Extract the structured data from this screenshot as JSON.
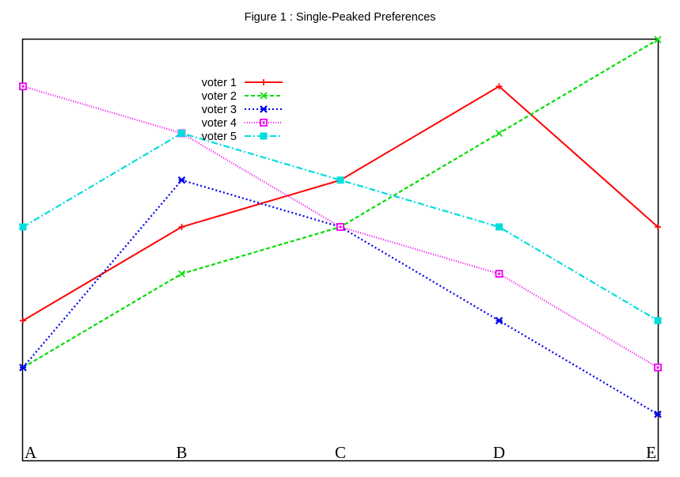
{
  "chart_data": {
    "type": "line",
    "title": "Figure 1 : Single-Peaked Preferences",
    "xlabel": "",
    "ylabel": "",
    "categories": [
      "A",
      "B",
      "C",
      "D",
      "E"
    ],
    "ylim": [
      0,
      9
    ],
    "grid": false,
    "legend_position": "top-center",
    "series": [
      {
        "name": "voter 1",
        "values": [
          3,
          5,
          6,
          8,
          5
        ],
        "color": "#ff0000",
        "line_style": "solid",
        "marker": "plus"
      },
      {
        "name": "voter 2",
        "values": [
          2,
          4,
          5,
          7,
          9
        ],
        "color": "#00dd00",
        "line_style": "dashed",
        "marker": "cross"
      },
      {
        "name": "voter 3",
        "values": [
          2,
          6,
          5,
          3,
          1
        ],
        "color": "#0000ee",
        "line_style": "dotted",
        "marker": "star"
      },
      {
        "name": "voter 4",
        "values": [
          8,
          7,
          5,
          4,
          2
        ],
        "color": "#ee00ee",
        "line_style": "fine-dotted",
        "marker": "square-open"
      },
      {
        "name": "voter 5",
        "values": [
          5,
          7,
          6,
          5,
          3
        ],
        "color": "#00dddd",
        "line_style": "dash-dot",
        "marker": "square-filled"
      }
    ]
  }
}
